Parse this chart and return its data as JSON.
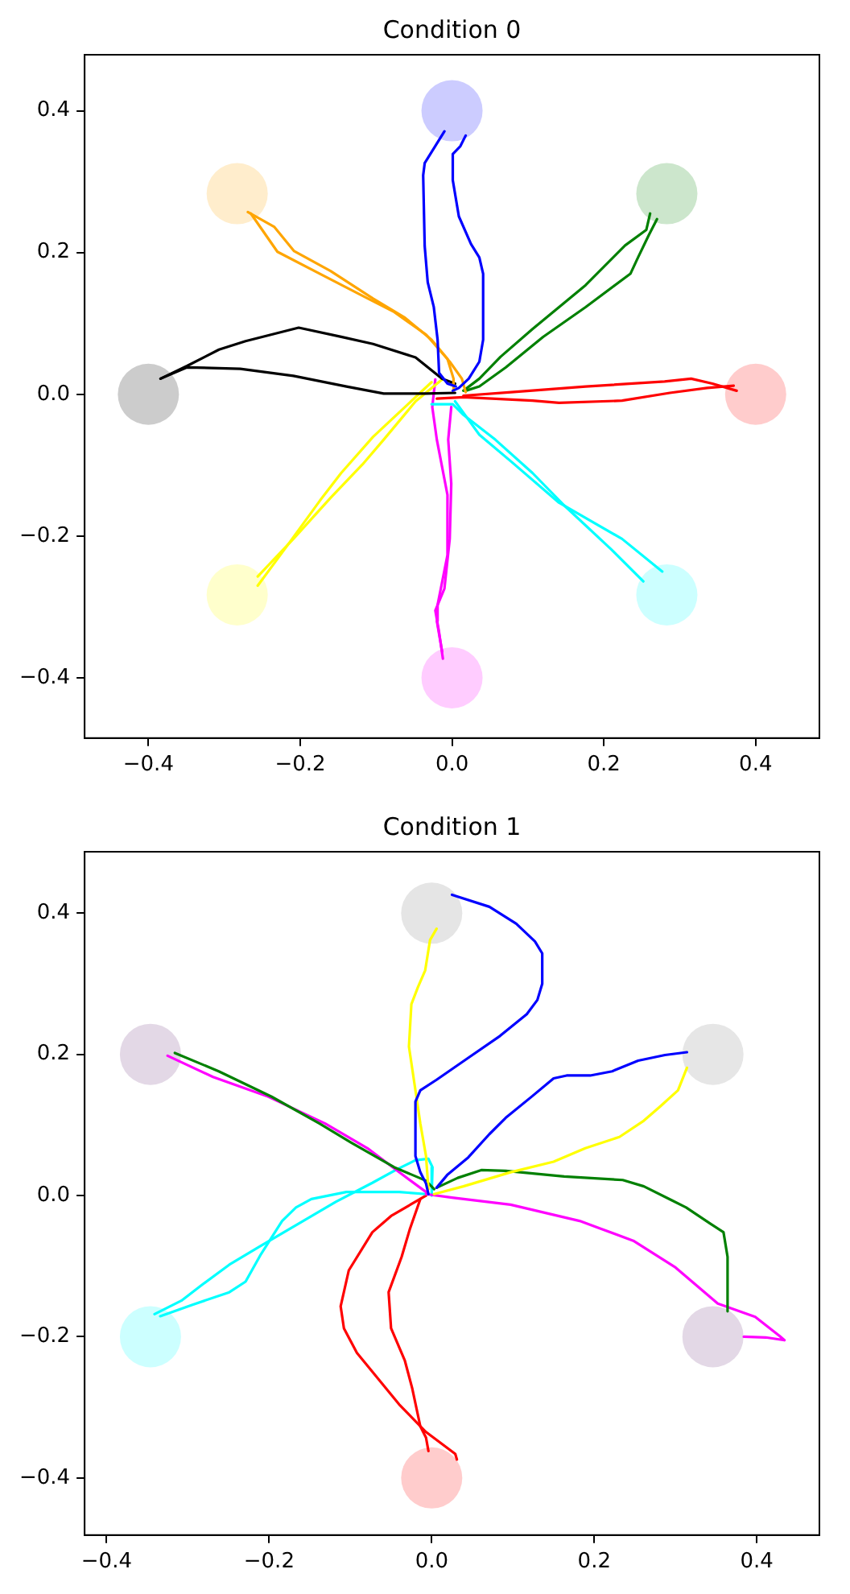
{
  "chart_data": [
    {
      "type": "line",
      "title": "Condition 0",
      "grid": false,
      "legend": false,
      "xlim": [
        -0.484,
        0.484
      ],
      "ylim": [
        -0.485,
        0.479
      ],
      "xticks": [
        {
          "value": -0.4,
          "label": "−0.4"
        },
        {
          "value": -0.2,
          "label": "−0.2"
        },
        {
          "value": 0,
          "label": "0.0"
        },
        {
          "value": 0.2,
          "label": "0.2"
        },
        {
          "value": 0.4,
          "label": "0.4"
        }
      ],
      "yticks": [
        {
          "value": -0.4,
          "label": "−0.4"
        },
        {
          "value": -0.2,
          "label": "−0.2"
        },
        {
          "value": 0,
          "label": "0.0"
        },
        {
          "value": 0.2,
          "label": "0.2"
        },
        {
          "value": 0.4,
          "label": "0.4"
        }
      ],
      "series": [
        {
          "type": "scatter",
          "marker": "circle",
          "color": "#ccccff",
          "x": [
            0
          ],
          "values": [
            0.4
          ]
        },
        {
          "type": "scatter",
          "marker": "circle",
          "color": "#cce6cc",
          "x": [
            0.283
          ],
          "values": [
            0.283
          ]
        },
        {
          "type": "scatter",
          "marker": "circle",
          "color": "#ffcccc",
          "x": [
            0.4
          ],
          "values": [
            0
          ]
        },
        {
          "type": "scatter",
          "marker": "circle",
          "color": "#ccffff",
          "x": [
            0.283
          ],
          "values": [
            -0.283
          ]
        },
        {
          "type": "scatter",
          "marker": "circle",
          "color": "#ffccff",
          "x": [
            0
          ],
          "values": [
            -0.4
          ]
        },
        {
          "type": "scatter",
          "marker": "circle",
          "color": "#ffffcc",
          "x": [
            -0.283
          ],
          "values": [
            -0.283
          ]
        },
        {
          "type": "scatter",
          "marker": "circle",
          "color": "#cccccc",
          "x": [
            -0.4
          ],
          "values": [
            0
          ]
        },
        {
          "type": "scatter",
          "marker": "circle",
          "color": "#ffedcc",
          "x": [
            -0.283
          ],
          "values": [
            0.283
          ]
        },
        {
          "type": "line",
          "marker": "none",
          "color": "#0000ff",
          "x": [
            -0.01,
            -0.036,
            -0.038,
            -0.036,
            -0.032,
            -0.024,
            -0.019,
            -0.017,
            -0.006,
            0.005
          ],
          "values": [
            0.371,
            0.326,
            0.309,
            0.209,
            0.158,
            0.123,
            0.077,
            0.03,
            0.015,
            0.011
          ]
        },
        {
          "type": "line",
          "marker": "none",
          "color": "#0000ff",
          "x": [
            0.018,
            0.011,
            0.001,
            0.001,
            0.009,
            0.025,
            0.036,
            0.041,
            0.041,
            0.036,
            0.022,
            0.009,
            0.001
          ],
          "values": [
            0.365,
            0.35,
            0.339,
            0.302,
            0.251,
            0.212,
            0.193,
            0.17,
            0.077,
            0.046,
            0.022,
            0.009,
            0.005
          ]
        },
        {
          "type": "line",
          "marker": "none",
          "color": "#ffa500",
          "x": [
            -0.269,
            -0.234,
            -0.208,
            -0.16,
            -0.104,
            -0.062,
            -0.027,
            -0.006,
            0.002,
            0.002
          ],
          "values": [
            0.257,
            0.236,
            0.202,
            0.174,
            0.135,
            0.108,
            0.077,
            0.05,
            0.022,
            0.005
          ]
        },
        {
          "type": "line",
          "marker": "none",
          "color": "#ffa500",
          "x": [
            -0.265,
            -0.23,
            -0.174,
            -0.118,
            -0.076,
            -0.034,
            -0.003,
            0.013,
            0.018
          ],
          "values": [
            0.255,
            0.201,
            0.17,
            0.139,
            0.116,
            0.084,
            0.046,
            0.022,
            0.003
          ]
        },
        {
          "type": "line",
          "marker": "none",
          "color": "#008000",
          "x": [
            0.261,
            0.256,
            0.228,
            0.176,
            0.106,
            0.064,
            0.036,
            0.015
          ],
          "values": [
            0.255,
            0.232,
            0.21,
            0.154,
            0.092,
            0.053,
            0.022,
            0.005
          ]
        },
        {
          "type": "line",
          "marker": "none",
          "color": "#008000",
          "x": [
            0.27,
            0.259,
            0.245,
            0.235,
            0.176,
            0.12,
            0.071,
            0.036,
            0.018
          ],
          "values": [
            0.247,
            0.224,
            0.193,
            0.17,
            0.123,
            0.081,
            0.038,
            0.011,
            0.005
          ]
        },
        {
          "type": "line",
          "marker": "none",
          "color": "#000000",
          "x": [
            -0.384,
            -0.349,
            -0.307,
            -0.272,
            -0.202,
            -0.146,
            -0.104,
            -0.048,
            -0.013,
            0.004
          ],
          "values": [
            0.022,
            0.04,
            0.063,
            0.075,
            0.094,
            0.081,
            0.071,
            0.052,
            0.022,
            0.015
          ]
        },
        {
          "type": "line",
          "marker": "none",
          "color": "#000000",
          "x": [
            -0.384,
            -0.349,
            -0.279,
            -0.209,
            -0.139,
            -0.09,
            -0.034,
            0.004
          ],
          "values": [
            0.022,
            0.038,
            0.036,
            0.026,
            0.011,
            0.001,
            0.001,
            0.002
          ]
        },
        {
          "type": "line",
          "marker": "none",
          "color": "#ff0000",
          "x": [
            0.015,
            0.078,
            0.176,
            0.28,
            0.315,
            0.343,
            0.375
          ],
          "values": [
            -0.002,
            0.003,
            0.011,
            0.018,
            0.022,
            0.015,
            0.005
          ]
        },
        {
          "type": "line",
          "marker": "none",
          "color": "#ff0000",
          "x": [
            -0.02,
            0.015,
            0.106,
            0.141,
            0.224,
            0.287,
            0.336,
            0.371
          ],
          "values": [
            -0.006,
            -0.004,
            -0.009,
            -0.012,
            -0.009,
            0.002,
            0.009,
            0.012
          ]
        },
        {
          "type": "line",
          "marker": "none",
          "color": "#ffff00",
          "x": [
            -0.256,
            -0.216,
            -0.174,
            -0.146,
            -0.104,
            -0.062,
            -0.027
          ],
          "values": [
            -0.27,
            -0.212,
            -0.15,
            -0.111,
            -0.06,
            -0.018,
            0.017
          ]
        },
        {
          "type": "line",
          "marker": "none",
          "color": "#ffff00",
          "x": [
            -0.256,
            -0.209,
            -0.16,
            -0.118,
            -0.09,
            -0.048,
            -0.013
          ],
          "values": [
            -0.257,
            -0.204,
            -0.146,
            -0.099,
            -0.064,
            -0.01,
            0.021
          ]
        },
        {
          "type": "line",
          "marker": "none",
          "color": "#00ffff",
          "x": [
            0.277,
            0.224,
            0.141,
            0.078,
            0.036,
            0.015,
            0.004
          ],
          "values": [
            -0.25,
            -0.204,
            -0.153,
            -0.095,
            -0.057,
            -0.026,
            -0.01
          ]
        },
        {
          "type": "line",
          "marker": "none",
          "color": "#00ffff",
          "x": [
            0.252,
            0.21,
            0.148,
            0.106,
            0.057,
            0.015,
            0.001,
            -0.027
          ],
          "values": [
            -0.264,
            -0.219,
            -0.157,
            -0.111,
            -0.064,
            -0.029,
            -0.014,
            -0.014
          ]
        },
        {
          "type": "line",
          "marker": "none",
          "color": "#ff00ff",
          "x": [
            -0.012,
            -0.017,
            -0.022,
            -0.01,
            -0.003,
            -0.001,
            -0.005,
            -0.001
          ],
          "values": [
            -0.373,
            -0.336,
            -0.305,
            -0.274,
            -0.204,
            -0.126,
            -0.064,
            -0.018
          ]
        },
        {
          "type": "line",
          "marker": "none",
          "color": "#ff00ff",
          "x": [
            -0.013,
            -0.02,
            -0.019,
            -0.006,
            -0.006,
            -0.02,
            -0.026,
            -0.022
          ],
          "values": [
            -0.363,
            -0.32,
            -0.297,
            -0.227,
            -0.142,
            -0.064,
            -0.018,
            0.021
          ]
        }
      ]
    },
    {
      "type": "line",
      "title": "Condition 1",
      "grid": false,
      "legend": false,
      "xlim": [
        -0.427,
        0.477
      ],
      "ylim": [
        -0.481,
        0.487
      ],
      "xticks": [
        {
          "value": -0.4,
          "label": "−0.4"
        },
        {
          "value": -0.2,
          "label": "−0.2"
        },
        {
          "value": 0,
          "label": "0.0"
        },
        {
          "value": 0.2,
          "label": "0.2"
        },
        {
          "value": 0.4,
          "label": "0.4"
        }
      ],
      "yticks": [
        {
          "value": -0.4,
          "label": "−0.4"
        },
        {
          "value": -0.2,
          "label": "−0.2"
        },
        {
          "value": 0,
          "label": "0.0"
        },
        {
          "value": 0.2,
          "label": "0.2"
        },
        {
          "value": 0.4,
          "label": "0.4"
        }
      ],
      "series": [
        {
          "type": "scatter",
          "marker": "circle",
          "color": "#e5e5e5",
          "x": [
            0
          ],
          "values": [
            0.4
          ]
        },
        {
          "type": "scatter",
          "marker": "circle",
          "color": "#e6e6e6",
          "x": [
            0.346
          ],
          "values": [
            0.2
          ]
        },
        {
          "type": "scatter",
          "marker": "circle",
          "color": "#e3d8e6",
          "x": [
            0.346
          ],
          "values": [
            -0.2
          ]
        },
        {
          "type": "scatter",
          "marker": "circle",
          "color": "#ffcccc",
          "x": [
            0
          ],
          "values": [
            -0.4
          ]
        },
        {
          "type": "scatter",
          "marker": "circle",
          "color": "#ccffff",
          "x": [
            -0.346
          ],
          "values": [
            -0.2
          ]
        },
        {
          "type": "scatter",
          "marker": "circle",
          "color": "#e3d8e6",
          "x": [
            -0.346
          ],
          "values": [
            0.2
          ]
        },
        {
          "type": "line",
          "marker": "none",
          "color": "#0000ff",
          "x": [
            0.025,
            0.071,
            0.104,
            0.127,
            0.136,
            0.136,
            0.13,
            0.117,
            0.084,
            0.045,
            0.006,
            -0.014,
            -0.02,
            -0.02,
            -0.014,
            -0.007,
            -0.004
          ],
          "values": [
            0.426,
            0.409,
            0.385,
            0.36,
            0.343,
            0.3,
            0.277,
            0.257,
            0.226,
            0.195,
            0.164,
            0.149,
            0.133,
            0.056,
            0.033,
            0.017,
            0.002
          ]
        },
        {
          "type": "line",
          "marker": "none",
          "color": "#0000ff",
          "x": [
            0.314,
            0.287,
            0.254,
            0.222,
            0.195,
            0.166,
            0.15,
            0.124,
            0.091,
            0.071,
            0.045,
            0.019,
            0.006
          ],
          "values": [
            0.203,
            0.199,
            0.191,
            0.176,
            0.17,
            0.17,
            0.166,
            0.141,
            0.11,
            0.087,
            0.054,
            0.029,
            0.011
          ]
        },
        {
          "type": "line",
          "marker": "none",
          "color": "#ffff00",
          "x": [
            0.006,
            -0.002,
            -0.008,
            -0.017,
            -0.025,
            -0.028,
            -0.02,
            -0.014,
            -0.007,
            -0.004
          ],
          "values": [
            0.378,
            0.362,
            0.319,
            0.295,
            0.271,
            0.211,
            0.149,
            0.102,
            0.056,
            0.009
          ]
        },
        {
          "type": "line",
          "marker": "none",
          "color": "#ffff00",
          "x": [
            0.314,
            0.303,
            0.281,
            0.261,
            0.231,
            0.189,
            0.15,
            0.097,
            0.039,
            0.003
          ],
          "values": [
            0.181,
            0.149,
            0.126,
            0.106,
            0.083,
            0.067,
            0.048,
            0.033,
            0.013,
            0.002
          ]
        },
        {
          "type": "line",
          "marker": "none",
          "color": "#008000",
          "x": [
            -0.316,
            -0.262,
            -0.197,
            -0.138,
            -0.099,
            -0.046,
            -0.007,
            0.003
          ],
          "values": [
            0.202,
            0.176,
            0.14,
            0.102,
            0.075,
            0.04,
            0.021,
            0.009
          ]
        },
        {
          "type": "line",
          "marker": "none",
          "color": "#008000",
          "x": [
            0.006,
            0.032,
            0.061,
            0.091,
            0.163,
            0.235,
            0.261,
            0.294,
            0.313,
            0.343,
            0.359,
            0.364,
            0.364
          ],
          "values": [
            0.011,
            0.025,
            0.036,
            0.035,
            0.027,
            0.022,
            0.013,
            -0.006,
            -0.017,
            -0.04,
            -0.052,
            -0.087,
            -0.164
          ]
        },
        {
          "type": "line",
          "marker": "none",
          "color": "#ff00ff",
          "x": [
            -0.325,
            -0.269,
            -0.203,
            -0.131,
            -0.079,
            -0.04,
            -0.007
          ],
          "values": [
            0.198,
            0.168,
            0.141,
            0.102,
            0.067,
            0.033,
            0.005
          ]
        },
        {
          "type": "line",
          "marker": "none",
          "color": "#ff00ff",
          "x": [
            -0.007,
            0.025,
            0.097,
            0.182,
            0.248,
            0.3,
            0.352,
            0.398,
            0.428,
            0.434,
            0.411,
            0.384
          ],
          "values": [
            0.002,
            -0.003,
            -0.013,
            -0.036,
            -0.064,
            -0.102,
            -0.153,
            -0.172,
            -0.199,
            -0.205,
            -0.201,
            -0.2
          ]
        },
        {
          "type": "line",
          "marker": "none",
          "color": "#00ffff",
          "x": [
            -0.341,
            -0.308,
            -0.282,
            -0.249,
            -0.21,
            -0.164,
            -0.118,
            -0.073,
            -0.043,
            -0.02,
            -0.004,
            0.001,
            0.0
          ],
          "values": [
            -0.168,
            -0.149,
            -0.126,
            -0.098,
            -0.071,
            -0.04,
            -0.009,
            0.018,
            0.037,
            0.05,
            0.052,
            0.04,
            0.0
          ]
        },
        {
          "type": "line",
          "marker": "none",
          "color": "#00ffff",
          "x": [
            -0.334,
            -0.295,
            -0.249,
            -0.229,
            -0.21,
            -0.184,
            -0.167,
            -0.148,
            -0.105,
            -0.04,
            -0.007
          ],
          "values": [
            -0.171,
            -0.155,
            -0.137,
            -0.122,
            -0.083,
            -0.036,
            -0.017,
            -0.005,
            0.005,
            0.005,
            0.002
          ]
        },
        {
          "type": "line",
          "marker": "none",
          "color": "#ff0000",
          "x": [
            -0.007,
            -0.05,
            -0.073,
            -0.102,
            -0.112,
            -0.108,
            -0.092,
            -0.04,
            -0.007,
            0.029,
            0.031
          ],
          "values": [
            0.0,
            -0.029,
            -0.052,
            -0.106,
            -0.157,
            -0.188,
            -0.223,
            -0.296,
            -0.335,
            -0.366,
            -0.374
          ]
        },
        {
          "type": "line",
          "marker": "none",
          "color": "#ff0000",
          "x": [
            -0.014,
            -0.027,
            -0.037,
            -0.053,
            -0.05,
            -0.033,
            -0.024,
            -0.014,
            -0.007,
            -0.004
          ],
          "values": [
            -0.005,
            -0.048,
            -0.087,
            -0.137,
            -0.188,
            -0.234,
            -0.273,
            -0.327,
            -0.343,
            -0.362
          ]
        }
      ]
    }
  ]
}
